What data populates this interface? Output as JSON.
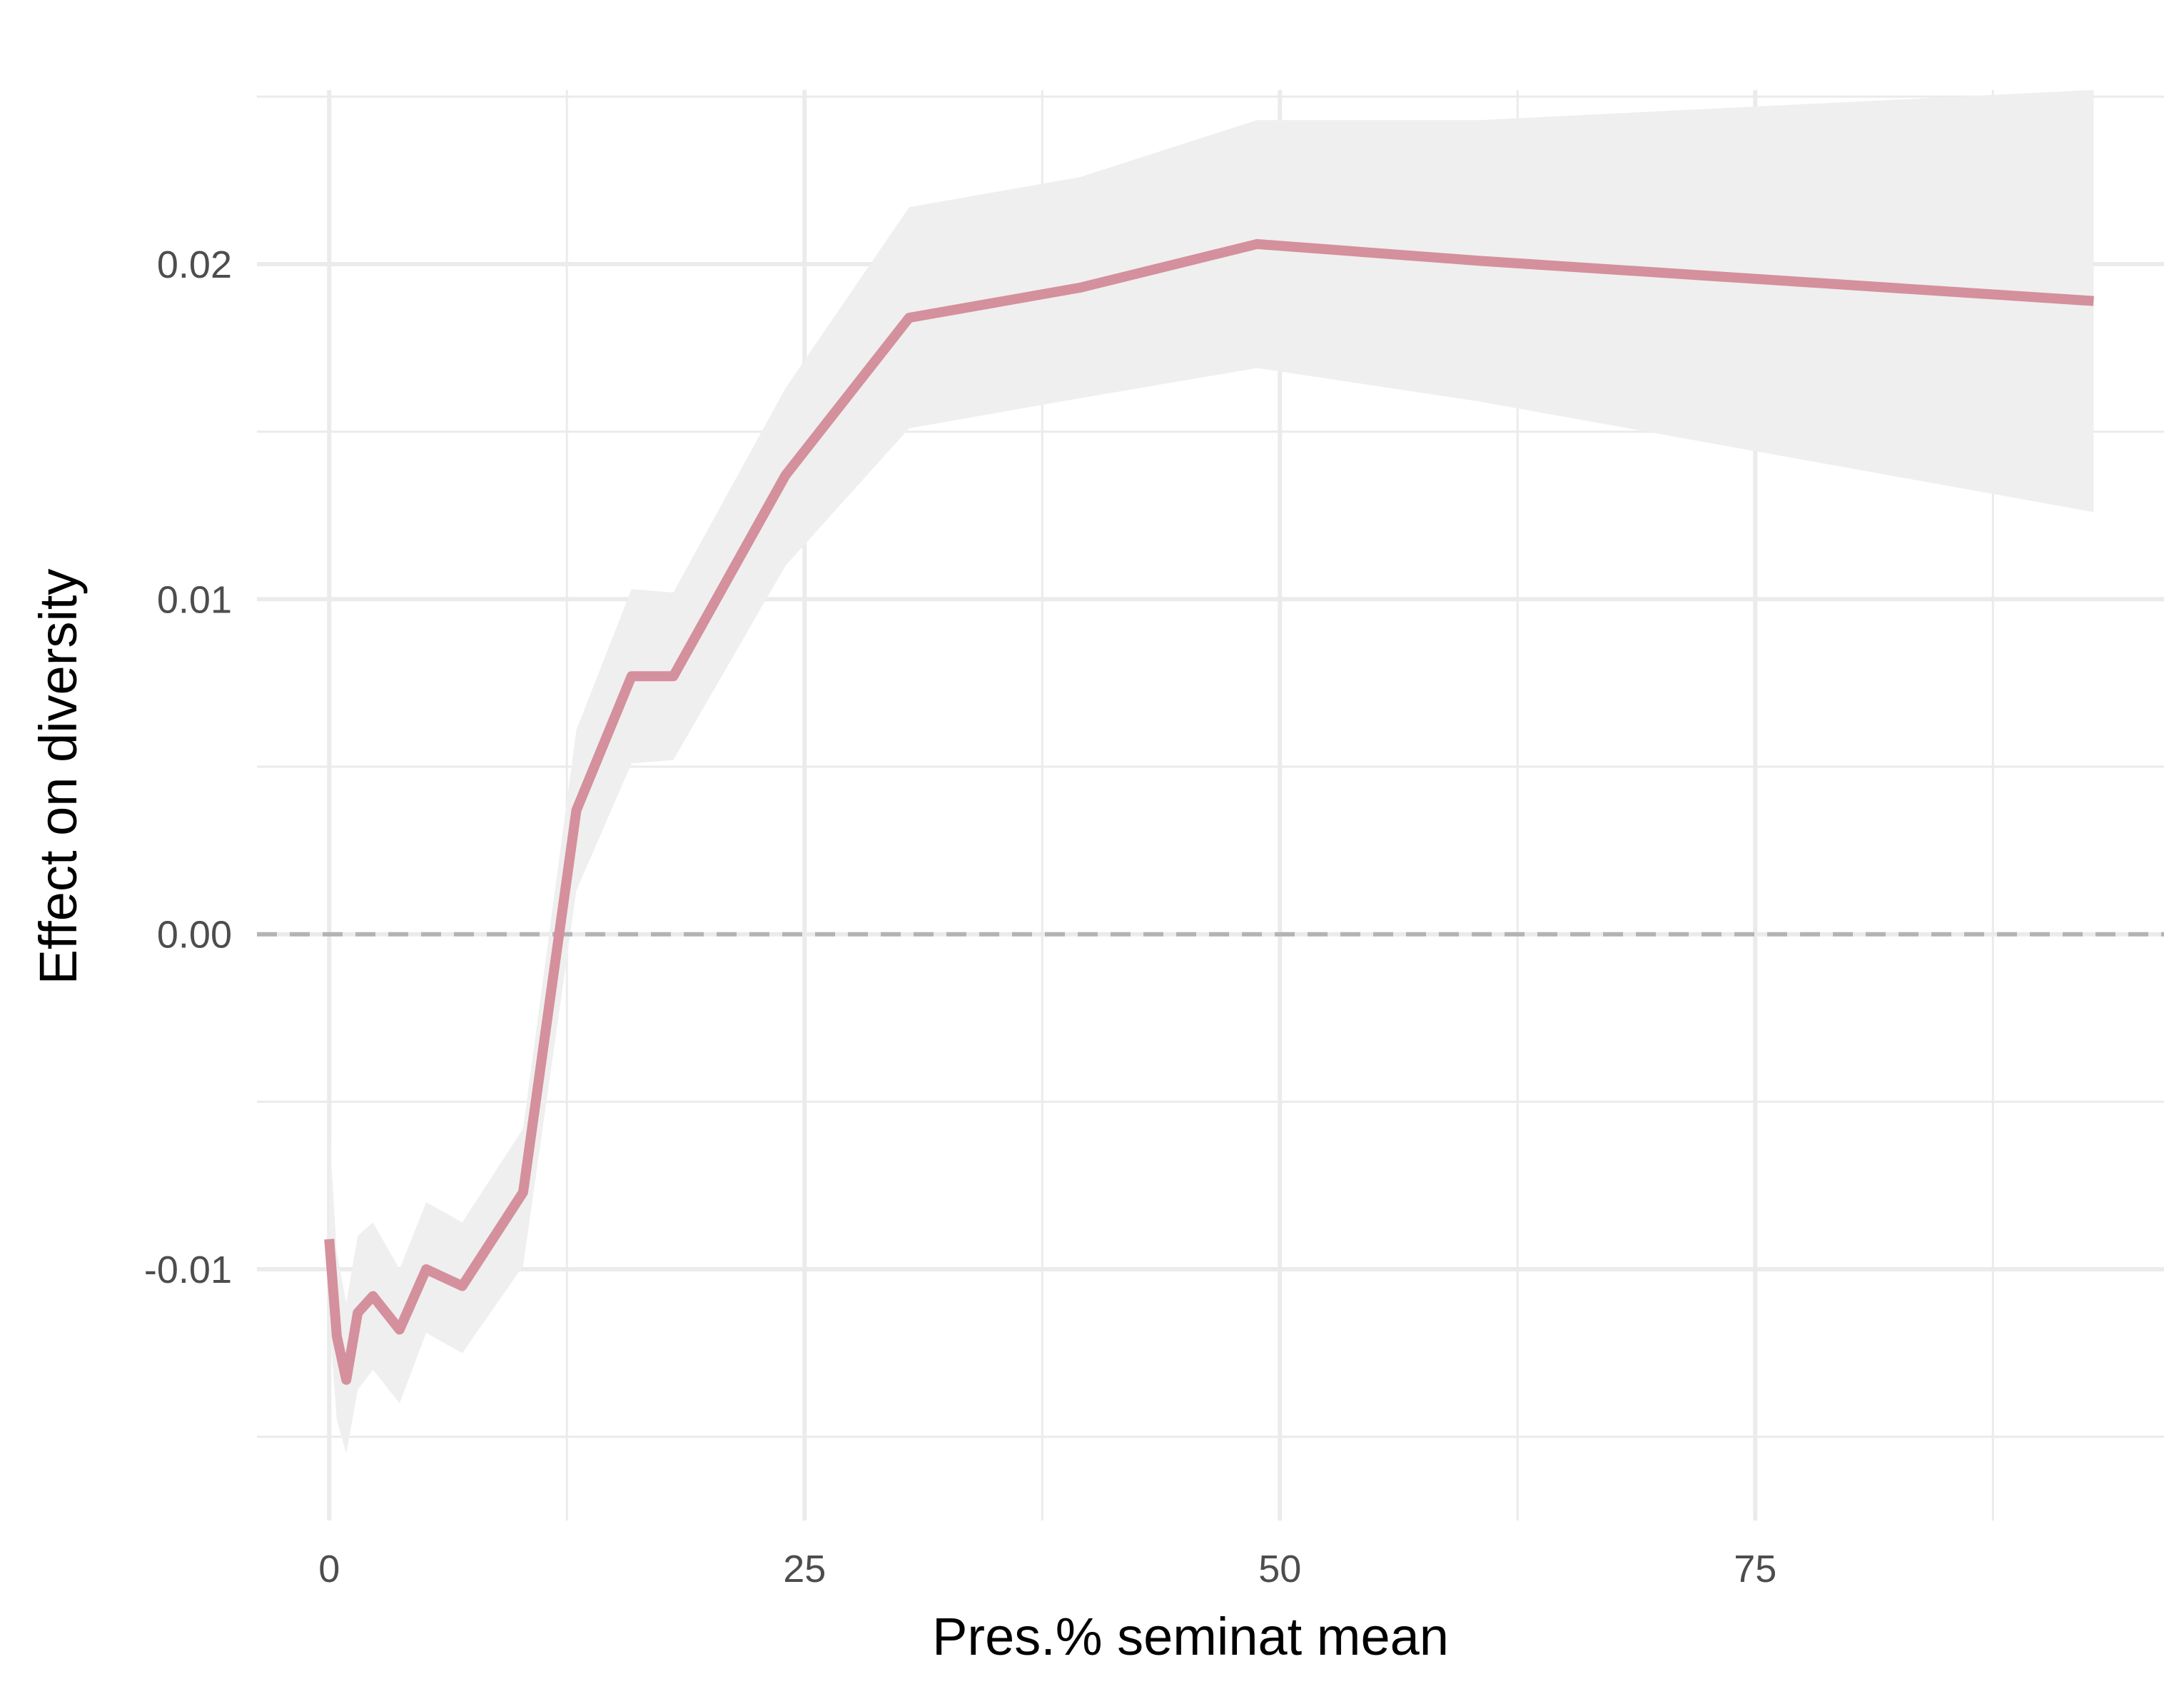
{
  "chart_data": {
    "type": "line",
    "title": "",
    "xlabel": "Pres.% seminat mean",
    "ylabel": "Effect on diversity",
    "xlim": [
      -3.8,
      96.5
    ],
    "ylim": [
      -0.0175,
      0.0252
    ],
    "grid": true,
    "legend": "none",
    "x_ticks": [
      0,
      25,
      50,
      75
    ],
    "x_tick_labels": [
      "0",
      "25",
      "50",
      "75"
    ],
    "x_minor_ticks": [
      12.5,
      37.5,
      62.5,
      87.5
    ],
    "y_ticks": [
      -0.01,
      0.0,
      0.01,
      0.02
    ],
    "y_tick_labels": [
      "-0.01",
      "0.00",
      "0.01",
      "0.02"
    ],
    "y_minor_ticks": [
      -0.015,
      -0.005,
      0.005,
      0.015,
      0.025
    ],
    "reference_line": {
      "y": 0.0,
      "style": "dashed",
      "color": "#b3b3b3"
    },
    "colors": {
      "line": "#d4909c",
      "ribbon": "#efefef",
      "grid": "#ebebeb"
    },
    "series": [
      {
        "x": [
          0.0,
          0.4,
          0.9,
          1.5,
          2.3,
          3.7,
          5.1,
          7.0,
          10.2,
          13.0,
          15.9,
          18.1,
          24.0,
          30.5,
          39.5,
          48.8,
          60.5,
          92.8
        ],
        "y": [
          -0.0091,
          -0.012,
          -0.0133,
          -0.0113,
          -0.0108,
          -0.0118,
          -0.01,
          -0.0105,
          -0.0077,
          0.0037,
          0.0077,
          0.0077,
          0.0137,
          0.0184,
          0.0193,
          0.0206,
          0.0201,
          0.0189
        ],
        "lower": [
          -0.0115,
          -0.0145,
          -0.0155,
          -0.0136,
          -0.013,
          -0.014,
          -0.0119,
          -0.0125,
          -0.0099,
          0.0013,
          0.0051,
          0.0052,
          0.011,
          0.0151,
          0.016,
          0.0169,
          0.0159,
          0.0126
        ],
        "upper": [
          -0.0058,
          -0.0095,
          -0.011,
          -0.009,
          -0.0086,
          -0.01,
          -0.008,
          -0.0086,
          -0.0058,
          0.0061,
          0.0103,
          0.0102,
          0.0163,
          0.0217,
          0.0226,
          0.0243,
          0.0243,
          0.0252
        ]
      }
    ]
  }
}
